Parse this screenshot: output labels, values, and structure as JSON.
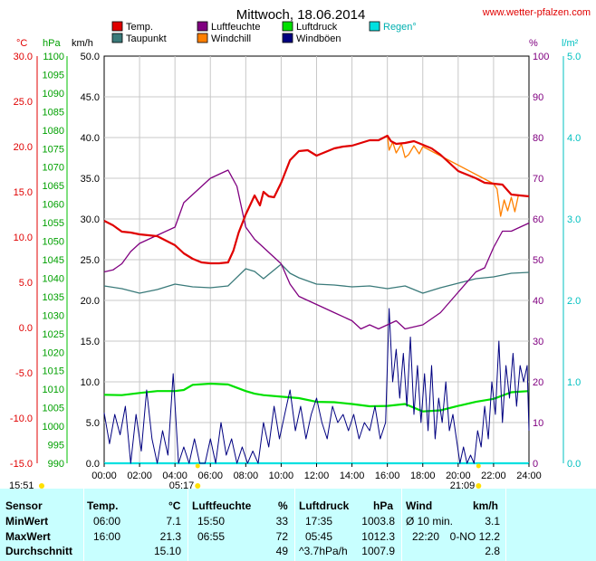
{
  "title": "Mittwoch, 18.06.2014",
  "site": "www.wetter-pfalzen.com",
  "colors": {
    "temp": "#e00000",
    "dew": "#3a7a7a",
    "hum": "#800080",
    "chill": "#ff8000",
    "press": "#00e000",
    "gust": "#000080",
    "rain": "#00e0e0"
  },
  "legend": [
    {
      "key": "temp",
      "label": "Temp."
    },
    {
      "key": "dew",
      "label": "Taupunkt"
    },
    {
      "key": "hum",
      "label": "Luftfeuchte"
    },
    {
      "key": "chill",
      "label": "Windchill"
    },
    {
      "key": "press",
      "label": "Luftdruck"
    },
    {
      "key": "gust",
      "label": "Windböen"
    },
    {
      "key": "rain",
      "label": "Regen°"
    }
  ],
  "axes": {
    "temp_unit": "°C",
    "press_unit": "hPa",
    "wind_unit": "km/h",
    "hum_unit": "%",
    "rain_unit": "l/m²",
    "temp_ticks": [
      "30.0",
      "25.0",
      "20.0",
      "15.0",
      "10.0",
      "5.0",
      "0.0",
      "-5.0",
      "-10.0",
      "-15.0"
    ],
    "press_ticks": [
      "1100",
      "1095",
      "1090",
      "1085",
      "1080",
      "1075",
      "1070",
      "1065",
      "1060",
      "1055",
      "1050",
      "1045",
      "1040",
      "1035",
      "1030",
      "1025",
      "1020",
      "1015",
      "1010",
      "1005",
      "1000",
      "995",
      "990"
    ],
    "wind_ticks": [
      "50.0",
      "45.0",
      "40.0",
      "35.0",
      "30.0",
      "25.0",
      "20.0",
      "15.0",
      "10.0",
      "5.0",
      "0.0"
    ],
    "hum_ticks": [
      "100",
      "90",
      "80",
      "70",
      "60",
      "50",
      "40",
      "30",
      "20",
      "10",
      "0"
    ],
    "rain_ticks": [
      "5.0",
      "4.0",
      "3.0",
      "2.0",
      "1.0",
      "0.0"
    ],
    "x_ticks": [
      "00:00",
      "02:00",
      "04:00",
      "06:00",
      "08:00",
      "10:00",
      "12:00",
      "14:00",
      "16:00",
      "18:00",
      "20:00",
      "22:00",
      "24:00"
    ],
    "sunrise": "05:17",
    "sunset": "21:09",
    "daylength": "15:51"
  },
  "chart_data": {
    "type": "line",
    "title": "Mittwoch, 18.06.2014",
    "x_unit": "hours",
    "xlim": [
      0,
      24
    ],
    "series": [
      {
        "name": "Temp.",
        "key": "temp",
        "axis": "temp",
        "ylim": [
          -15,
          30
        ],
        "x": [
          0,
          0.5,
          1,
          1.5,
          2,
          3,
          3.5,
          4,
          4.5,
          5,
          5.5,
          6,
          6.5,
          7,
          7.3,
          7.6,
          8,
          8.5,
          8.8,
          9,
          9.3,
          9.6,
          10,
          10.5,
          11,
          11.5,
          12,
          12.5,
          13,
          13.5,
          14,
          14.5,
          15,
          15.5,
          16,
          16.2,
          16.5,
          17,
          17.5,
          18,
          18.5,
          19,
          19.5,
          20,
          20.5,
          21,
          21.5,
          22,
          22.5,
          23,
          23.5,
          24
        ],
        "y": [
          11.8,
          11.3,
          10.6,
          10.5,
          10.3,
          10.1,
          9.6,
          9.1,
          8.2,
          7.6,
          7.2,
          7.1,
          7.1,
          7.2,
          8.5,
          10.5,
          12.5,
          14.6,
          13.5,
          15.0,
          14.5,
          14.4,
          16.0,
          18.5,
          19.5,
          19.6,
          19.0,
          19.4,
          19.8,
          20.0,
          20.1,
          20.4,
          20.7,
          20.7,
          21.2,
          20.6,
          20.3,
          20.4,
          20.6,
          20.2,
          19.8,
          19.1,
          18.2,
          17.3,
          16.9,
          16.5,
          16.0,
          15.9,
          15.8,
          14.7,
          14.6,
          14.5
        ]
      },
      {
        "name": "Taupunkt",
        "key": "dew",
        "axis": "temp",
        "ylim": [
          -15,
          30
        ],
        "x": [
          0,
          1,
          2,
          3,
          4,
          5,
          6,
          7,
          8,
          8.5,
          9,
          10,
          10.5,
          11,
          12,
          13,
          14,
          15,
          16,
          17,
          18,
          19,
          20,
          21,
          22,
          23,
          24
        ],
        "y": [
          4.6,
          4.3,
          3.8,
          4.2,
          4.8,
          4.5,
          4.4,
          4.6,
          6.5,
          6.2,
          5.4,
          7.0,
          6.0,
          5.5,
          4.8,
          4.7,
          4.5,
          4.6,
          4.3,
          4.6,
          3.8,
          4.4,
          4.9,
          5.4,
          5.6,
          6.0,
          6.1
        ]
      },
      {
        "name": "Luftfeuchte",
        "key": "hum",
        "axis": "hum",
        "ylim": [
          0,
          100
        ],
        "x": [
          0,
          0.5,
          1,
          1.5,
          2,
          3,
          4,
          4.5,
          5,
          5.5,
          6,
          6.5,
          7,
          7.5,
          7.8,
          8,
          8.5,
          9,
          9.5,
          10,
          10.5,
          11,
          11.5,
          12,
          12.5,
          13,
          14,
          14.5,
          15,
          15.5,
          16,
          16.5,
          17,
          18,
          19,
          20,
          21,
          21.5,
          22,
          22.5,
          23,
          23.5,
          24
        ],
        "y": [
          47,
          47.5,
          49,
          52,
          54,
          56,
          58,
          64,
          66,
          68,
          70,
          71,
          72,
          68,
          62,
          58,
          55,
          53,
          51,
          49,
          44,
          41,
          40,
          39,
          38,
          37,
          35,
          33,
          34,
          33,
          34,
          35,
          33,
          34,
          37,
          42,
          47,
          48,
          53,
          57,
          57,
          58,
          59
        ]
      },
      {
        "name": "Windchill",
        "key": "chill",
        "axis": "temp",
        "ylim": [
          -15,
          30
        ],
        "x": [
          16,
          16.1,
          16.3,
          16.5,
          16.8,
          17,
          17.2,
          17.5,
          17.8,
          18,
          22,
          22.2,
          22.4,
          22.6,
          22.8,
          23,
          23.2,
          23.4
        ],
        "y": [
          21.2,
          19.6,
          20.5,
          19.3,
          20.3,
          18.8,
          19.1,
          20.1,
          19.2,
          20.0,
          15.9,
          15.3,
          12.3,
          14.1,
          12.9,
          14.4,
          12.8,
          14.6
        ]
      },
      {
        "name": "Luftdruck",
        "key": "press",
        "axis": "press",
        "ylim": [
          990,
          1100
        ],
        "x": [
          0,
          1,
          2,
          3,
          4,
          4.5,
          5,
          6,
          7,
          8,
          8.5,
          9,
          10,
          11,
          12,
          13,
          14,
          15,
          16,
          17,
          18,
          19,
          20,
          21,
          22,
          23,
          24
        ],
        "y": [
          1008.5,
          1008.4,
          1009,
          1009.5,
          1009.5,
          1009.8,
          1011.2,
          1011.5,
          1011.3,
          1009.5,
          1008.8,
          1008.4,
          1008.0,
          1007.6,
          1006.6,
          1006.5,
          1006.0,
          1005.4,
          1005.5,
          1006.0,
          1004.0,
          1004.3,
          1005.5,
          1006.6,
          1007.4,
          1009.2,
          1009.5
        ]
      },
      {
        "name": "Windböen",
        "key": "gust",
        "axis": "wind",
        "ylim": [
          0,
          50
        ],
        "x": [
          0,
          0.3,
          0.6,
          0.9,
          1.2,
          1.5,
          1.8,
          2.1,
          2.4,
          2.7,
          3.0,
          3.3,
          3.6,
          3.9,
          4.2,
          4.5,
          4.8,
          5.1,
          5.4,
          5.7,
          6.0,
          6.3,
          6.6,
          6.9,
          7.2,
          7.5,
          7.8,
          8.1,
          8.4,
          8.7,
          9.0,
          9.3,
          9.6,
          9.9,
          10.2,
          10.5,
          10.8,
          11.1,
          11.4,
          11.7,
          12.0,
          12.3,
          12.6,
          12.9,
          13.2,
          13.5,
          13.8,
          14.1,
          14.4,
          14.7,
          15.0,
          15.3,
          15.6,
          15.9,
          16.1,
          16.3,
          16.5,
          16.7,
          16.9,
          17.1,
          17.3,
          17.5,
          17.7,
          17.9,
          18.1,
          18.3,
          18.5,
          18.7,
          18.9,
          19.1,
          19.3,
          19.5,
          19.7,
          19.9,
          20.1,
          20.3,
          20.5,
          20.7,
          20.9,
          21.1,
          21.3,
          21.5,
          21.7,
          21.9,
          22.1,
          22.3,
          22.5,
          22.7,
          22.9,
          23.1,
          23.3,
          23.5,
          23.7,
          23.9,
          24.0
        ],
        "y": [
          6.2,
          2.4,
          6.0,
          3.5,
          7.0,
          0.0,
          6.0,
          1.5,
          9.0,
          3.0,
          0.0,
          4.0,
          1.0,
          11.0,
          0.0,
          2.0,
          0.0,
          3.0,
          0.0,
          0.0,
          3.0,
          0.0,
          5.0,
          1.0,
          3.0,
          0.0,
          2.0,
          0.0,
          1.5,
          0.0,
          5.0,
          2.0,
          7.0,
          3.0,
          6.0,
          9.0,
          4.0,
          7.0,
          3.0,
          6.0,
          8.0,
          5.0,
          3.0,
          7.0,
          5.0,
          6.0,
          4.0,
          6.0,
          3.0,
          5.0,
          4.0,
          7.0,
          3.0,
          5.0,
          19.0,
          10.0,
          14.0,
          8.0,
          13.5,
          7.0,
          15.5,
          6.0,
          12.0,
          5.0,
          11.0,
          4.0,
          12.0,
          3.0,
          8.0,
          5.0,
          10.0,
          4.0,
          6.0,
          3.0,
          0.0,
          2.0,
          0.0,
          1.0,
          0.0,
          4.0,
          2.0,
          7.0,
          3.0,
          10.0,
          6.0,
          15.0,
          5.0,
          12.0,
          8.0,
          13.5,
          7.0,
          12.0,
          10.0,
          12.0,
          4.0
        ]
      },
      {
        "name": "Regen°",
        "key": "rain",
        "axis": "rain",
        "ylim": [
          0,
          5
        ],
        "x": [
          0,
          24
        ],
        "y": [
          0.0,
          0.0
        ]
      }
    ]
  },
  "stats": {
    "headers": {
      "sensor": "Sensor",
      "temp": "Temp.",
      "temp_unit": "°C",
      "hum": "Luftfeuchte",
      "hum_unit": "%",
      "press": "Luftdruck",
      "press_unit": "hPa",
      "wind": "Wind",
      "wind_unit": "km/h"
    },
    "rows": [
      {
        "label": "MinWert",
        "t_time": "06:00",
        "t_val": "7.1",
        "h_time": "15:50",
        "h_val": "33",
        "p_time": "17:35",
        "p_val": "1003.8",
        "w_time": "Ø 10 min.",
        "w_val": "3.1"
      },
      {
        "label": "MaxWert",
        "t_time": "16:00",
        "t_val": "21.3",
        "h_time": "06:55",
        "h_val": "72",
        "p_time": "05:45",
        "p_val": "1012.3",
        "w_time": "22:20",
        "w_val": "0-NO 12.2"
      },
      {
        "label": "Durchschnitt",
        "t_time": "",
        "t_val": "15.10",
        "h_time": "",
        "h_val": "49",
        "p_time": "^3.7hPa/h",
        "p_val": "1007.9",
        "w_time": "",
        "w_val": "2.8"
      }
    ]
  }
}
